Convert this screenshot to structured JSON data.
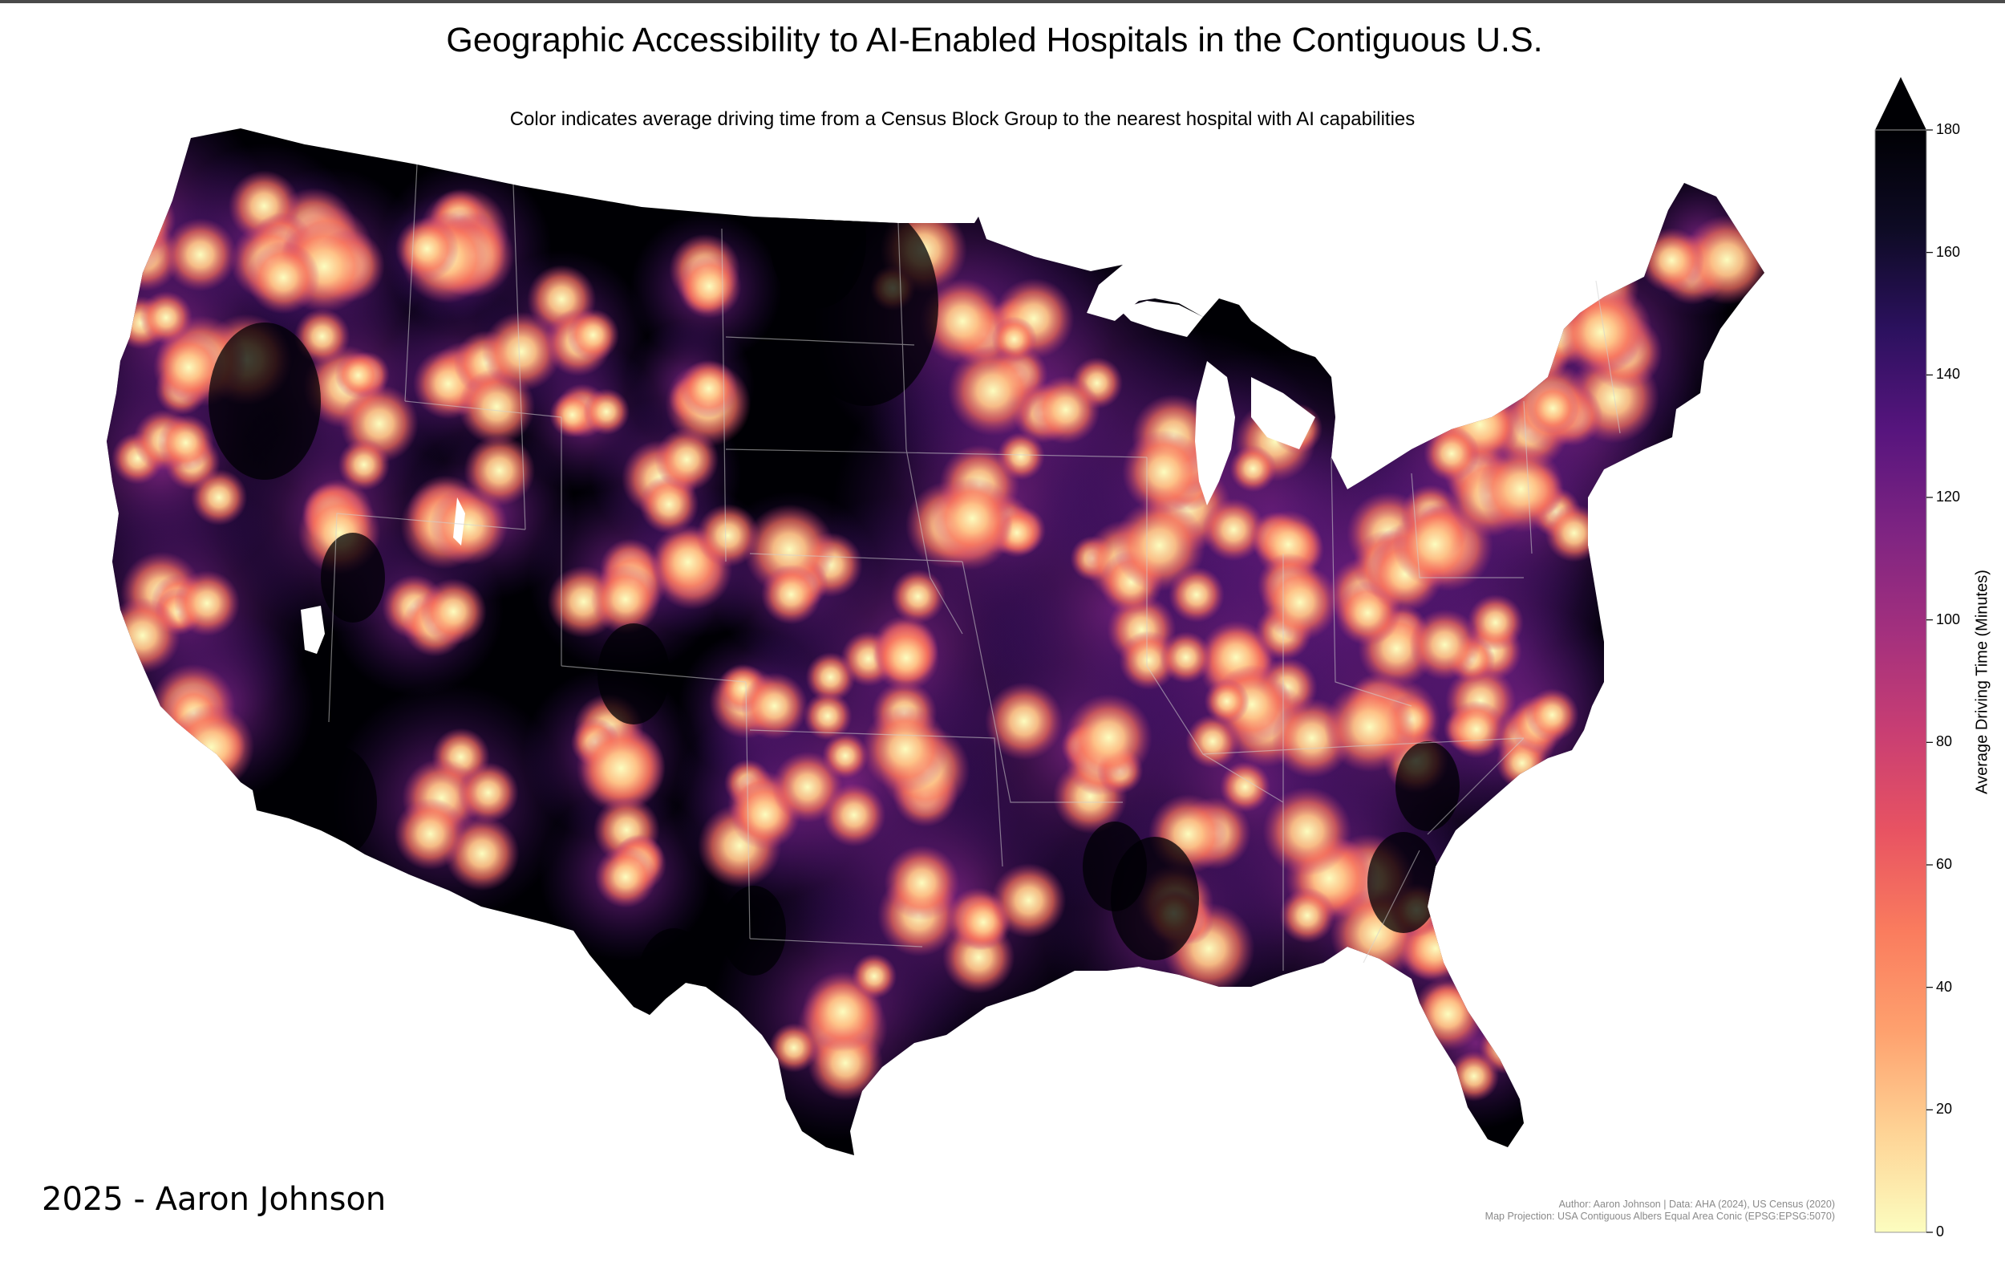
{
  "title": "Geographic Accessibility to AI-Enabled Hospitals in the Contiguous U.S.",
  "subtitle": "Color indicates average driving time from a Census Block Group to the nearest hospital with AI capabilities",
  "legend": {
    "title": "Average Driving Time (Minutes)",
    "ticks": [
      "180",
      "160",
      "140",
      "120",
      "100",
      "80",
      "60",
      "40",
      "20",
      "0"
    ],
    "min": 0,
    "max": 180,
    "extend": "max",
    "colormap": [
      "#fcfdbf",
      "#fed395",
      "#fea16e",
      "#fa7c5e",
      "#e85362",
      "#c83e73",
      "#a3307e",
      "#7e2482",
      "#57157e",
      "#2c115f",
      "#0e0b25",
      "#000004"
    ]
  },
  "signature": "2025 - Aaron Johnson",
  "credits": {
    "line1": "Author: Aaron Johnson | Data: AHA (2024), US Census (2020)",
    "line2": "Map Projection: USA Contiguous Albers Equal Area Conic (EPSG:EPSG:5070)"
  },
  "colors": {
    "near": "#fcfdbf",
    "far": "#000004",
    "background": "#ffffff",
    "boundary": "#d0d0d0"
  }
}
